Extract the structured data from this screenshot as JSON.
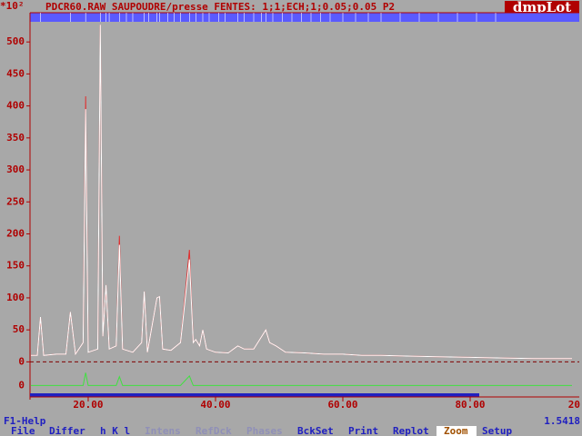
{
  "chart_data": {
    "type": "line",
    "title": "PDCR60.RAW SAUPOUDRE/presse FENTES: 1;1;ECH;1;0.05;0.05   P2",
    "y_unit_label": "*10²",
    "x": [
      11,
      12,
      12.5,
      13,
      15,
      16.5,
      17.2,
      18,
      19.2,
      19.6,
      20,
      21.5,
      21.9,
      22.3,
      22.8,
      23.3,
      24.4,
      24.9,
      25.4,
      27,
      28.4,
      28.8,
      29.3,
      30.8,
      31.2,
      31.7,
      33,
      34.5,
      35.9,
      36.5,
      36.9,
      37.5,
      38,
      38.6,
      40,
      42,
      43.5,
      44.5,
      46,
      47.9,
      48.5,
      49.5,
      51,
      54,
      57,
      60,
      63,
      66,
      70,
      75,
      80,
      85,
      90,
      96
    ],
    "series": [
      {
        "color": "#e03030",
        "values": [
          10,
          10,
          70,
          10,
          12,
          12,
          78,
          12,
          30,
          415,
          15,
          20,
          527,
          40,
          120,
          20,
          25,
          197,
          20,
          15,
          30,
          110,
          15,
          100,
          102,
          20,
          18,
          30,
          175,
          30,
          35,
          25,
          50,
          20,
          15,
          14,
          25,
          20,
          20,
          50,
          30,
          25,
          15,
          14,
          12,
          12,
          10,
          10,
          9,
          8,
          7,
          6,
          5,
          5
        ]
      },
      {
        "color": "#ffffff",
        "values": [
          10,
          10,
          70,
          10,
          12,
          12,
          78,
          12,
          30,
          395,
          15,
          20,
          527,
          40,
          120,
          20,
          25,
          183,
          20,
          15,
          30,
          110,
          15,
          100,
          102,
          20,
          18,
          30,
          160,
          30,
          35,
          25,
          50,
          20,
          15,
          14,
          25,
          20,
          20,
          50,
          30,
          25,
          15,
          14,
          12,
          12,
          10,
          10,
          9,
          8,
          7,
          6,
          5,
          5
        ]
      },
      {
        "color": "#40e040",
        "values": [
          -37,
          -37,
          -37,
          -37,
          -37,
          -37,
          -37,
          -37,
          -37,
          -17,
          -37,
          -37,
          -37,
          -37,
          -37,
          -37,
          -37,
          -23,
          -37,
          -37,
          -37,
          -37,
          -37,
          -37,
          -37,
          -37,
          -37,
          -37,
          -22,
          -37,
          -37,
          -37,
          -37,
          -37,
          -37,
          -37,
          -37,
          -37,
          -37,
          -37,
          -37,
          -37,
          -37,
          -37,
          -37,
          -37,
          -37,
          -37,
          -37,
          -37,
          -37,
          -37,
          -37,
          -37
        ]
      }
    ],
    "reflections": [
      12.5,
      17.2,
      19.6,
      21.9,
      22.8,
      23.3,
      24.9,
      26,
      27,
      28.8,
      29.5,
      30.8,
      31.2,
      32.5,
      33.5,
      34.5,
      35.9,
      36.9,
      38,
      39,
      40.5,
      41.5,
      43.5,
      44.5,
      46,
      47.2,
      47.9,
      49,
      50.5,
      52,
      53.5,
      55,
      56.5,
      58,
      60,
      62,
      64,
      66,
      69,
      72,
      75,
      78,
      81,
      84
    ],
    "reflection_color": "#5a5aff",
    "xlim": [
      10.86,
      97.14
    ],
    "ylim": [
      -52,
      540
    ],
    "xticks": [
      {
        "value": 20,
        "label": "20.00"
      },
      {
        "value": 40,
        "label": "40.00"
      },
      {
        "value": 60,
        "label": "60.00"
      },
      {
        "value": 80,
        "label": "80.00"
      }
    ],
    "yticks": [
      0,
      50,
      100,
      150,
      200,
      250,
      300,
      350,
      400,
      450,
      500
    ],
    "diff_zero_label": "0",
    "right_edge_label": "20"
  },
  "ui": {
    "logo": "dmpLot",
    "help": "F1-Help",
    "wavelength": "1.5418",
    "menu": [
      "File",
      "Differ",
      "h K l",
      "Intens",
      "RefDck",
      "Phases",
      "BckSet",
      "Print",
      "Replot",
      "Zoom",
      "Setup"
    ]
  }
}
